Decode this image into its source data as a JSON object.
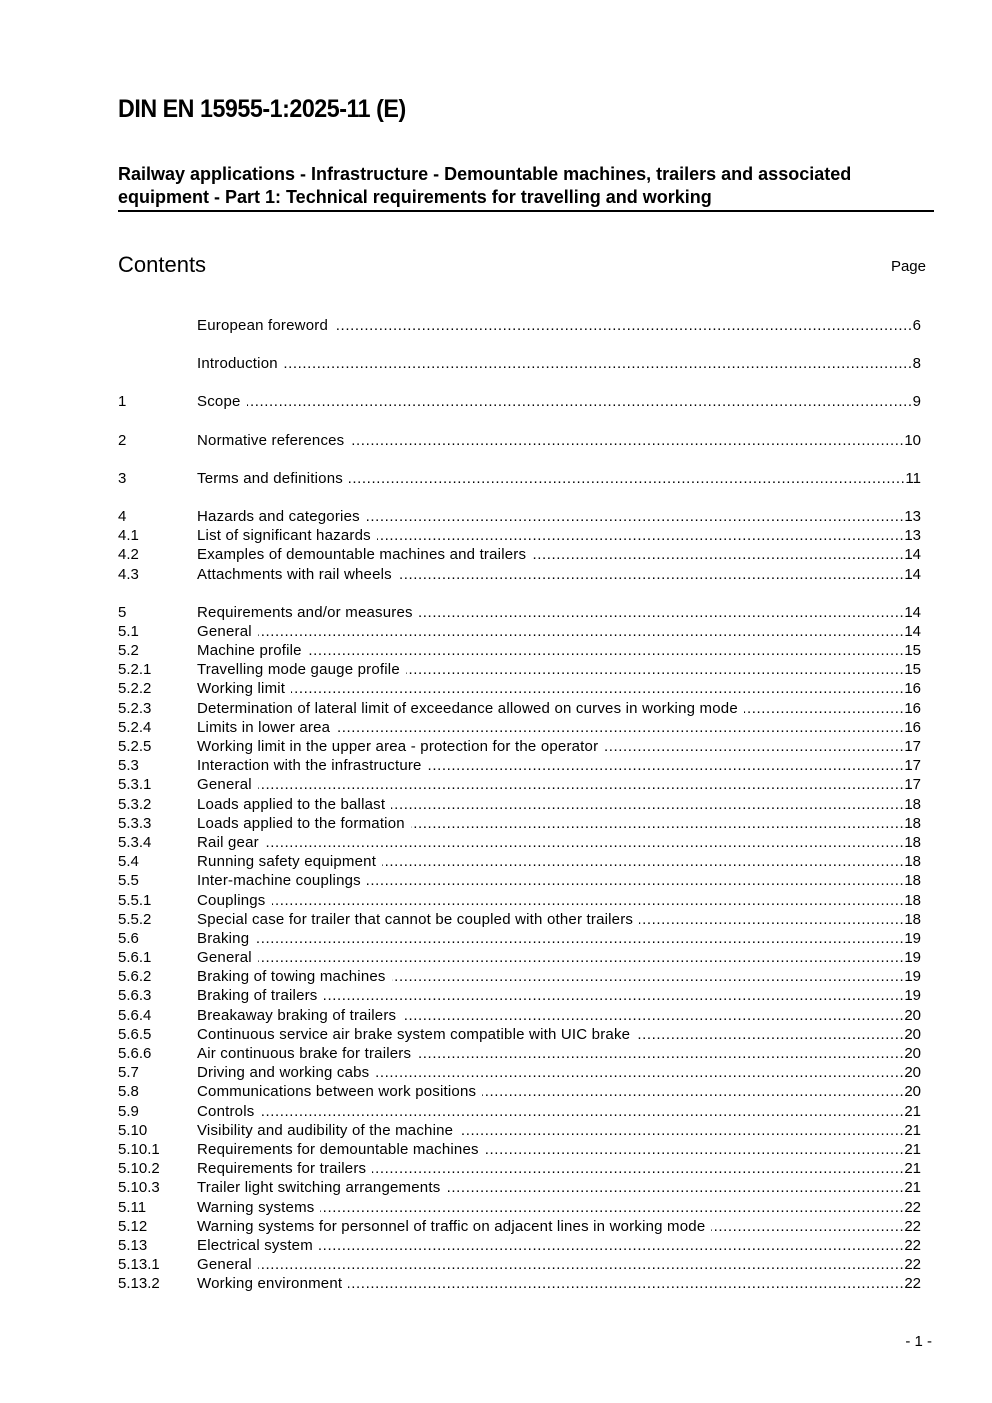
{
  "header": {
    "doc_id": "DIN EN 15955-1:2025-11 (E)",
    "title": "Railway applications - Infrastructure - Demountable machines, trailers and associated equipment - Part 1: Technical requirements for travelling and working"
  },
  "contents": {
    "heading": "Contents",
    "page_label": "Page",
    "groups": [
      [
        {
          "num": "",
          "title": "European foreword",
          "page": "6"
        }
      ],
      [
        {
          "num": "",
          "title": "Introduction",
          "page": "8"
        }
      ],
      [
        {
          "num": "1",
          "title": "Scope",
          "page": "9"
        }
      ],
      [
        {
          "num": "2",
          "title": "Normative references",
          "page": "10"
        }
      ],
      [
        {
          "num": "3",
          "title": "Terms and definitions",
          "page": "11"
        }
      ],
      [
        {
          "num": "4",
          "title": "Hazards and categories",
          "page": "13"
        },
        {
          "num": "4.1",
          "title": "List of significant hazards",
          "page": "13"
        },
        {
          "num": "4.2",
          "title": "Examples of demountable machines and trailers",
          "page": "14"
        },
        {
          "num": "4.3",
          "title": "Attachments with rail wheels",
          "page": "14"
        }
      ],
      [
        {
          "num": "5",
          "title": "Requirements and/or measures",
          "page": "14"
        },
        {
          "num": "5.1",
          "title": "General",
          "page": "14"
        },
        {
          "num": "5.2",
          "title": "Machine profile",
          "page": "15"
        },
        {
          "num": "5.2.1",
          "title": "Travelling mode gauge profile",
          "page": "15"
        },
        {
          "num": "5.2.2",
          "title": "Working limit",
          "page": "16"
        },
        {
          "num": "5.2.3",
          "title": "Determination of lateral limit of exceedance allowed on curves in working mode",
          "page": "16"
        },
        {
          "num": "5.2.4",
          "title": "Limits in lower area",
          "page": "16"
        },
        {
          "num": "5.2.5",
          "title": "Working limit in the upper area - protection for the operator",
          "page": "17"
        },
        {
          "num": "5.3",
          "title": "Interaction with the infrastructure",
          "page": "17"
        },
        {
          "num": "5.3.1",
          "title": "General",
          "page": "17"
        },
        {
          "num": "5.3.2",
          "title": "Loads applied to the ballast",
          "page": "18"
        },
        {
          "num": "5.3.3",
          "title": "Loads applied to the formation",
          "page": "18"
        },
        {
          "num": "5.3.4",
          "title": "Rail gear",
          "page": "18"
        },
        {
          "num": "5.4",
          "title": "Running safety equipment",
          "page": "18"
        },
        {
          "num": "5.5",
          "title": "Inter-machine couplings",
          "page": "18"
        },
        {
          "num": "5.5.1",
          "title": "Couplings",
          "page": "18"
        },
        {
          "num": "5.5.2",
          "title": "Special case for trailer that cannot be coupled with other trailers",
          "page": "18"
        },
        {
          "num": "5.6",
          "title": "Braking",
          "page": "19"
        },
        {
          "num": "5.6.1",
          "title": "General",
          "page": "19"
        },
        {
          "num": "5.6.2",
          "title": "Braking of towing machines",
          "page": "19"
        },
        {
          "num": "5.6.3",
          "title": "Braking of trailers",
          "page": "19"
        },
        {
          "num": "5.6.4",
          "title": "Breakaway braking of trailers",
          "page": "20"
        },
        {
          "num": "5.6.5",
          "title": "Continuous service air brake system compatible with UIC brake",
          "page": "20"
        },
        {
          "num": "5.6.6",
          "title": "Air continuous brake for trailers",
          "page": "20"
        },
        {
          "num": "5.7",
          "title": "Driving and working cabs",
          "page": "20"
        },
        {
          "num": "5.8",
          "title": "Communications between work positions",
          "page": "20"
        },
        {
          "num": "5.9",
          "title": "Controls",
          "page": "21"
        },
        {
          "num": "5.10",
          "title": "Visibility and audibility of the machine",
          "page": "21"
        },
        {
          "num": "5.10.1",
          "title": "Requirements for demountable machines",
          "page": "21"
        },
        {
          "num": "5.10.2",
          "title": "Requirements for trailers",
          "page": "21"
        },
        {
          "num": "5.10.3",
          "title": "Trailer light switching arrangements",
          "page": "21"
        },
        {
          "num": "5.11",
          "title": "Warning systems",
          "page": "22"
        },
        {
          "num": "5.12",
          "title": "Warning systems for personnel of traffic on adjacent lines in working mode",
          "page": "22"
        },
        {
          "num": "5.13",
          "title": "Electrical system",
          "page": "22"
        },
        {
          "num": "5.13.1",
          "title": "General",
          "page": "22"
        },
        {
          "num": "5.13.2",
          "title": "Working environment",
          "page": "22"
        }
      ]
    ]
  },
  "footer": {
    "page_number": "- 1 -"
  }
}
